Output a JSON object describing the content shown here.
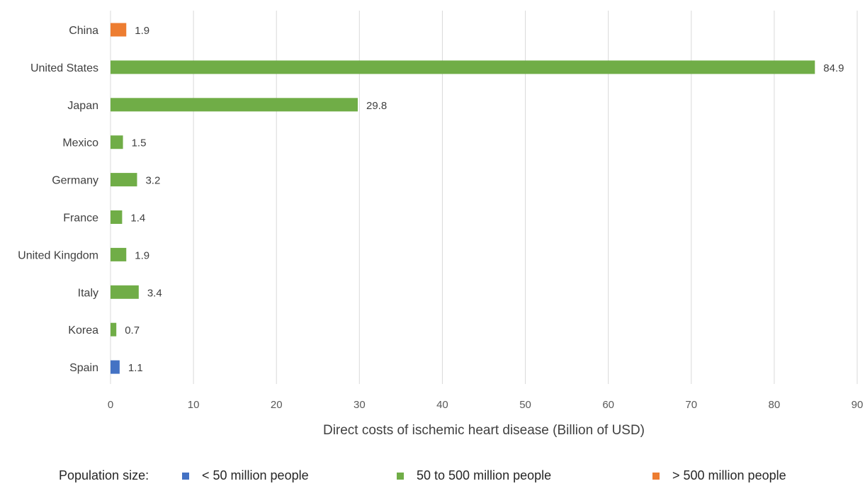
{
  "chart_data": {
    "type": "bar",
    "orientation": "horizontal",
    "categories": [
      "China",
      "United States",
      "Japan",
      "Mexico",
      "Germany",
      "France",
      "United Kingdom",
      "Italy",
      "Korea",
      "Spain"
    ],
    "values": [
      1.9,
      84.9,
      29.8,
      1.5,
      3.2,
      1.4,
      1.9,
      3.4,
      0.7,
      1.1
    ],
    "value_labels": [
      "1.9",
      "84.9",
      "29.8",
      "1.5",
      "3.2",
      "1.4",
      "1.9",
      "3.4",
      "0.7",
      "1.1"
    ],
    "groups": [
      "> 500 million people",
      "50 to 500 million people",
      "50 to 500 million people",
      "50 to 500 million people",
      "50 to 500 million people",
      "50 to 500 million people",
      "50 to 500 million people",
      "50 to 500 million people",
      "50 to 500 million people",
      "< 50 million people"
    ],
    "xlabel": "Direct costs of ischemic heart disease (Billion of USD)",
    "ylabel": "",
    "xlim": [
      0,
      90
    ],
    "xticks": [
      0,
      10,
      20,
      30,
      40,
      50,
      60,
      70,
      80,
      90
    ],
    "grid": "vertical",
    "legend_position": "bottom",
    "legend": {
      "title": "Population size:",
      "entries": [
        {
          "label": "< 50 million people",
          "color": "#4472c4"
        },
        {
          "label": "50 to 500 million people",
          "color": "#70ad47"
        },
        {
          "label": "> 500 million people",
          "color": "#ed7d31"
        }
      ]
    },
    "colors": {
      "< 50 million people": "#4472c4",
      "50 to 500 million people": "#70ad47",
      "> 500 million people": "#ed7d31",
      "grid": "#d9d9d9"
    }
  }
}
